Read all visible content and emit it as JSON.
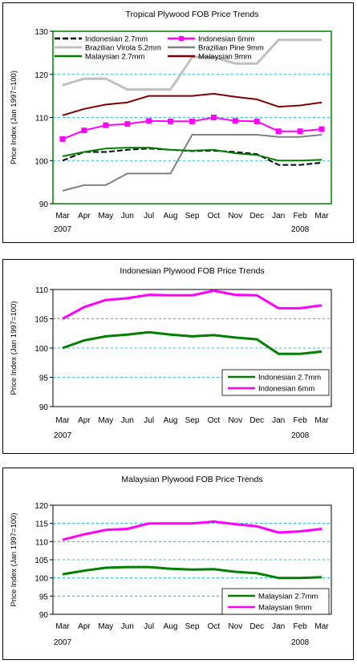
{
  "chart_data": [
    {
      "type": "line",
      "title": "Tropical Plywood FOB Price Trends",
      "xlabel": "",
      "ylabel": "Price Index (Jan 1997=100)",
      "categories": [
        "Mar",
        "Apr",
        "May",
        "Jun",
        "Jul",
        "Aug",
        "Sep",
        "Oct",
        "Nov",
        "Dec",
        "Jan",
        "Feb",
        "Mar"
      ],
      "year_labels": [
        {
          "index": 0,
          "text": "2007"
        },
        {
          "index": 11,
          "text": "2008"
        }
      ],
      "ylim": [
        90,
        130
      ],
      "yticks": [
        90,
        100,
        110,
        120,
        130
      ],
      "grid": "horizontal dashed",
      "legend_position": "top",
      "series": [
        {
          "name": "Indonesian 2.7mm",
          "color": "#000000",
          "dash": true,
          "marker": "",
          "values": [
            100,
            102,
            102,
            102.5,
            102.8,
            102.5,
            102.2,
            102.3,
            102,
            101.5,
            99,
            99,
            99.5
          ]
        },
        {
          "name": "Indonesian 6mm",
          "color": "#ff00ff",
          "dash": false,
          "marker": "square",
          "values": [
            105,
            107,
            108.2,
            108.5,
            109.2,
            109.1,
            109.1,
            110,
            109.2,
            109.1,
            106.8,
            106.8,
            107.3
          ]
        },
        {
          "name": "Brazilian Virola 5.2mm",
          "color": "#c0c0c0",
          "dash": false,
          "marker": "",
          "values": [
            117.5,
            119,
            119,
            116.5,
            116.5,
            116.5,
            124,
            124,
            122.5,
            122.5,
            128,
            128,
            128
          ]
        },
        {
          "name": "Brazilian Pine 9mm",
          "color": "#808080",
          "dash": false,
          "marker": "",
          "values": [
            93,
            94.3,
            94.3,
            97,
            97,
            97,
            106,
            106,
            106,
            106,
            105.5,
            105.5,
            106
          ]
        },
        {
          "name": "Malaysian 2.7mm",
          "color": "#008000",
          "dash": false,
          "marker": "",
          "values": [
            101,
            102,
            102.8,
            103,
            103,
            102.5,
            102.3,
            102.5,
            101.7,
            101.3,
            100,
            100,
            100.2
          ]
        },
        {
          "name": "Malaysian 9mm",
          "color": "#800000",
          "dash": false,
          "marker": "",
          "values": [
            110.5,
            112,
            113,
            113.5,
            115,
            115,
            115,
            115.5,
            114.8,
            114.2,
            112.5,
            112.8,
            113.5
          ]
        }
      ]
    },
    {
      "type": "line",
      "title": "Indonesian Plywood FOB Price Trends",
      "xlabel": "",
      "ylabel": "Price Index (Jan 1997=100)",
      "categories": [
        "Mar",
        "Apr",
        "May",
        "Jun",
        "Jul",
        "Aug",
        "Sep",
        "Oct",
        "Nov",
        "Dec",
        "Jan",
        "Feb",
        "Mar"
      ],
      "year_labels": [
        {
          "index": 0,
          "text": "2007"
        },
        {
          "index": 11,
          "text": "2008"
        }
      ],
      "ylim": [
        90,
        110
      ],
      "yticks": [
        90,
        95,
        100,
        105,
        110
      ],
      "grid": "horizontal dashed",
      "legend_position": "bottom-right",
      "series": [
        {
          "name": "Indonesian 2.7mm",
          "color": "#008000",
          "dash": false,
          "marker": "",
          "values": [
            100,
            101.3,
            102,
            102.3,
            102.7,
            102.3,
            102,
            102.2,
            101.8,
            101.5,
            99,
            99,
            99.4
          ]
        },
        {
          "name": "Indonesian 6mm",
          "color": "#ff00ff",
          "dash": false,
          "marker": "",
          "values": [
            105,
            107,
            108.2,
            108.5,
            109.1,
            109,
            109,
            109.8,
            109.1,
            109,
            106.8,
            106.8,
            107.3
          ]
        }
      ]
    },
    {
      "type": "line",
      "title": "Malaysian Plywood FOB Price Trends",
      "xlabel": "",
      "ylabel": "Price Index (Jan 1997=100)",
      "categories": [
        "Mar",
        "Apr",
        "May",
        "Jun",
        "Jul",
        "Aug",
        "Sep",
        "Oct",
        "Nov",
        "Dec",
        "Jan",
        "Feb",
        "Mar"
      ],
      "year_labels": [
        {
          "index": 0,
          "text": "2007"
        },
        {
          "index": 11,
          "text": "2008"
        }
      ],
      "ylim": [
        90,
        120
      ],
      "yticks": [
        90,
        95,
        100,
        105,
        110,
        115,
        120
      ],
      "grid": "horizontal dashed",
      "legend_position": "bottom-right",
      "series": [
        {
          "name": "Malaysian 2.7mm",
          "color": "#008000",
          "dash": false,
          "marker": "",
          "values": [
            101,
            102,
            102.8,
            103,
            103,
            102.5,
            102.3,
            102.4,
            101.7,
            101.3,
            100,
            100,
            100.2
          ]
        },
        {
          "name": "Malaysian 9mm",
          "color": "#ff00ff",
          "dash": false,
          "marker": "",
          "values": [
            110.5,
            112,
            113.2,
            113.5,
            115,
            115,
            115,
            115.5,
            114.8,
            114.2,
            112.5,
            112.8,
            113.5
          ]
        }
      ]
    }
  ]
}
